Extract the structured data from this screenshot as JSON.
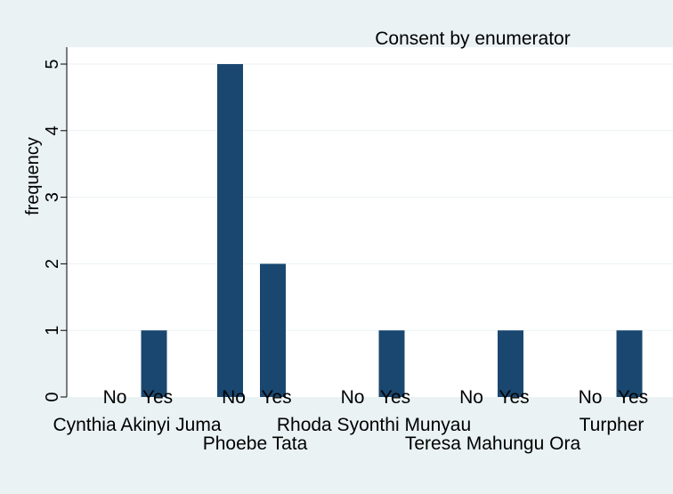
{
  "chart_data": {
    "type": "bar",
    "title": "Consent by enumerator",
    "ylabel": "frequency",
    "xlabel": "",
    "ylim": [
      0,
      5
    ],
    "yticks": [
      0,
      1,
      2,
      3,
      4,
      5
    ],
    "grid": true,
    "bar_color": "#1a476f",
    "plot_background": "#ffffff",
    "page_background": "#eaf2f3",
    "gridline_color": "#eaf2f3",
    "groups": [
      {
        "name": "Cynthia Akinyi Juma",
        "bars": [
          {
            "label": "No",
            "value": 0
          },
          {
            "label": "Yes",
            "value": 1
          }
        ]
      },
      {
        "name": "Phoebe Tata",
        "bars": [
          {
            "label": "No",
            "value": 5
          },
          {
            "label": "Yes",
            "value": 2
          }
        ]
      },
      {
        "name": "Rhoda Syonthi Munyau",
        "bars": [
          {
            "label": "No",
            "value": 0
          },
          {
            "label": "Yes",
            "value": 1
          }
        ]
      },
      {
        "name": "Teresa Mahungu Ora",
        "bars": [
          {
            "label": "No",
            "value": 0
          },
          {
            "label": "Yes",
            "value": 1
          }
        ]
      },
      {
        "name": "Turpher",
        "bars": [
          {
            "label": "No",
            "value": 0
          },
          {
            "label": "Yes",
            "value": 1
          }
        ]
      }
    ]
  }
}
